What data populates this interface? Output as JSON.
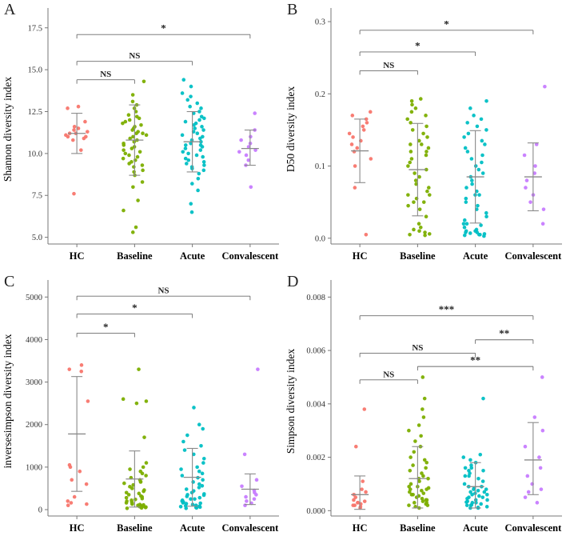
{
  "figure": {
    "background": "#ffffff",
    "groups": [
      "HC",
      "Baseline",
      "Acute",
      "Convalescent"
    ],
    "group_colors": [
      "#F8766D",
      "#7CAE00",
      "#00BFC4",
      "#C77CFF"
    ],
    "errorbar_color": "#8a8a8a",
    "axis_color": "#777777",
    "bracket_color": "#6b6b6b"
  },
  "chart_data": [
    {
      "type": "scatter",
      "panel_label": "A",
      "ylabel": "Shannon diversity index",
      "xlabel": "",
      "categories": [
        "HC",
        "Baseline",
        "Acute",
        "Convalescent"
      ],
      "ylim": [
        4.6,
        18.3
      ],
      "yticks": [
        5.0,
        7.5,
        10.0,
        12.5,
        15.0,
        17.5
      ],
      "ytick_labels": [
        "5.0",
        "7.5",
        "10.0",
        "12.5",
        "15.0",
        "17.5"
      ],
      "series": [
        {
          "name": "HC",
          "color": "#F8766D",
          "values": [
            7.6,
            10.2,
            10.8,
            10.9,
            11.0,
            11.0,
            11.1,
            11.2,
            11.2,
            11.3,
            11.4,
            11.5,
            11.6,
            11.9,
            12.7,
            12.8
          ],
          "errorbar": {
            "center": 11.2,
            "lo": 10.0,
            "hi": 12.4
          }
        },
        {
          "name": "Baseline",
          "color": "#7CAE00",
          "values": [
            5.3,
            5.6,
            6.6,
            7.2,
            8.0,
            8.3,
            8.7,
            8.9,
            9.0,
            9.2,
            9.3,
            9.4,
            9.5,
            9.6,
            9.7,
            9.8,
            9.9,
            10.0,
            10.1,
            10.2,
            10.3,
            10.4,
            10.5,
            10.6,
            10.7,
            10.8,
            10.9,
            11.0,
            11.1,
            11.2,
            11.2,
            11.3,
            11.4,
            11.5,
            11.6,
            11.7,
            11.8,
            11.9,
            12.0,
            12.1,
            12.2,
            12.3,
            12.5,
            12.7,
            12.9,
            13.1,
            13.5,
            14.3
          ],
          "errorbar": {
            "center": 10.8,
            "lo": 8.7,
            "hi": 12.9
          }
        },
        {
          "name": "Acute",
          "color": "#00BFC4",
          "values": [
            6.5,
            7.0,
            7.8,
            8.2,
            8.5,
            8.8,
            9.0,
            9.1,
            9.2,
            9.3,
            9.4,
            9.5,
            9.6,
            9.7,
            9.8,
            9.9,
            10.0,
            10.1,
            10.2,
            10.3,
            10.4,
            10.5,
            10.5,
            10.6,
            10.7,
            10.8,
            10.9,
            11.0,
            11.1,
            11.2,
            11.3,
            11.4,
            11.5,
            11.6,
            11.7,
            11.8,
            11.9,
            12.0,
            12.1,
            12.2,
            12.4,
            12.5,
            12.7,
            12.8,
            13.0,
            13.2,
            13.4,
            13.6,
            14.0,
            14.4
          ],
          "errorbar": {
            "center": 10.7,
            "lo": 8.9,
            "hi": 12.5
          }
        },
        {
          "name": "Convalescent",
          "color": "#C77CFF",
          "values": [
            8.0,
            9.3,
            9.6,
            9.9,
            10.1,
            10.2,
            10.4,
            10.6,
            10.8,
            11.0,
            11.4,
            12.4
          ],
          "errorbar": {
            "center": 10.3,
            "lo": 9.3,
            "hi": 11.4
          }
        }
      ],
      "significance": [
        {
          "from": 0,
          "to": 1,
          "label": "NS",
          "y": 14.4
        },
        {
          "from": 0,
          "to": 2,
          "label": "NS",
          "y": 15.5
        },
        {
          "from": 0,
          "to": 3,
          "label": "*",
          "y": 17.1
        }
      ]
    },
    {
      "type": "scatter",
      "panel_label": "B",
      "ylabel": "D50 diversity index",
      "xlabel": "",
      "categories": [
        "HC",
        "Baseline",
        "Acute",
        "Convalescent"
      ],
      "ylim": [
        -0.008,
        0.31
      ],
      "yticks": [
        0.0,
        0.1,
        0.2,
        0.3
      ],
      "ytick_labels": [
        "0.0",
        "0.1",
        "0.2",
        "0.3"
      ],
      "series": [
        {
          "name": "HC",
          "color": "#F8766D",
          "values": [
            0.005,
            0.07,
            0.1,
            0.11,
            0.12,
            0.125,
            0.13,
            0.135,
            0.14,
            0.145,
            0.15,
            0.155,
            0.16,
            0.165,
            0.17,
            0.175
          ],
          "errorbar": {
            "center": 0.121,
            "lo": 0.077,
            "hi": 0.165
          }
        },
        {
          "name": "Baseline",
          "color": "#7CAE00",
          "values": [
            0.004,
            0.005,
            0.006,
            0.008,
            0.01,
            0.012,
            0.015,
            0.02,
            0.03,
            0.04,
            0.045,
            0.05,
            0.05,
            0.055,
            0.06,
            0.06,
            0.065,
            0.07,
            0.075,
            0.08,
            0.085,
            0.09,
            0.095,
            0.1,
            0.105,
            0.11,
            0.115,
            0.12,
            0.12,
            0.125,
            0.13,
            0.13,
            0.135,
            0.14,
            0.145,
            0.15,
            0.155,
            0.16,
            0.165,
            0.17,
            0.175,
            0.18,
            0.185,
            0.19,
            0.193
          ],
          "errorbar": {
            "center": 0.095,
            "lo": 0.031,
            "hi": 0.159
          }
        },
        {
          "name": "Acute",
          "color": "#00BFC4",
          "values": [
            0.003,
            0.004,
            0.005,
            0.005,
            0.006,
            0.007,
            0.008,
            0.008,
            0.01,
            0.01,
            0.012,
            0.015,
            0.018,
            0.02,
            0.02,
            0.025,
            0.03,
            0.035,
            0.04,
            0.045,
            0.05,
            0.055,
            0.06,
            0.06,
            0.065,
            0.07,
            0.075,
            0.08,
            0.085,
            0.09,
            0.095,
            0.1,
            0.105,
            0.11,
            0.115,
            0.12,
            0.125,
            0.13,
            0.135,
            0.14,
            0.145,
            0.15,
            0.155,
            0.16,
            0.165,
            0.17,
            0.18,
            0.19
          ],
          "errorbar": {
            "center": 0.085,
            "lo": 0.021,
            "hi": 0.149
          }
        },
        {
          "name": "Convalescent",
          "color": "#C77CFF",
          "values": [
            0.02,
            0.04,
            0.05,
            0.06,
            0.07,
            0.08,
            0.09,
            0.1,
            0.115,
            0.13,
            0.21
          ],
          "errorbar": {
            "center": 0.085,
            "lo": 0.038,
            "hi": 0.132
          }
        }
      ],
      "significance": [
        {
          "from": 0,
          "to": 1,
          "label": "NS",
          "y": 0.232
        },
        {
          "from": 0,
          "to": 2,
          "label": "*",
          "y": 0.258
        },
        {
          "from": 0,
          "to": 3,
          "label": "*",
          "y": 0.288
        }
      ]
    },
    {
      "type": "scatter",
      "panel_label": "C",
      "ylabel": "inversesimpson diversity index",
      "xlabel": "",
      "categories": [
        "HC",
        "Baseline",
        "Acute",
        "Convalescent"
      ],
      "ylim": [
        -150,
        5250
      ],
      "yticks": [
        0,
        1000,
        2000,
        3000,
        4000,
        5000
      ],
      "ytick_labels": [
        "0",
        "1000",
        "2000",
        "3000",
        "4000",
        "5000"
      ],
      "series": [
        {
          "name": "HC",
          "color": "#F8766D",
          "values": [
            100,
            130,
            160,
            200,
            300,
            600,
            700,
            900,
            1000,
            1050,
            2550,
            3250,
            3300,
            3400
          ],
          "errorbar": {
            "center": 1780,
            "lo": 430,
            "hi": 3130
          }
        },
        {
          "name": "Baseline",
          "color": "#7CAE00",
          "values": [
            30,
            40,
            50,
            60,
            70,
            80,
            90,
            100,
            110,
            120,
            130,
            150,
            160,
            180,
            200,
            220,
            240,
            260,
            280,
            300,
            320,
            350,
            380,
            400,
            430,
            460,
            500,
            540,
            580,
            620,
            650,
            660,
            700,
            750,
            800,
            850,
            900,
            950,
            1000,
            1100,
            1700,
            2500,
            2550,
            2600,
            3300
          ],
          "errorbar": {
            "center": 720,
            "lo": 60,
            "hi": 1380
          }
        },
        {
          "name": "Acute",
          "color": "#00BFC4",
          "values": [
            30,
            40,
            50,
            60,
            70,
            80,
            90,
            100,
            120,
            140,
            150,
            160,
            180,
            200,
            220,
            250,
            250,
            280,
            310,
            340,
            350,
            370,
            400,
            440,
            480,
            520,
            560,
            600,
            650,
            700,
            750,
            800,
            850,
            900,
            950,
            1000,
            1100,
            1200,
            1300,
            1400,
            1500,
            1600,
            1750,
            1900,
            2000,
            2400
          ],
          "errorbar": {
            "center": 760,
            "lo": 80,
            "hi": 1440
          }
        },
        {
          "name": "Convalescent",
          "color": "#C77CFF",
          "values": [
            100,
            150,
            200,
            250,
            300,
            350,
            400,
            450,
            550,
            700,
            1300,
            3300
          ],
          "errorbar": {
            "center": 480,
            "lo": 120,
            "hi": 840
          }
        }
      ],
      "significance": [
        {
          "from": 0,
          "to": 1,
          "label": "*",
          "y": 4150
        },
        {
          "from": 0,
          "to": 2,
          "label": "*",
          "y": 4600
        },
        {
          "from": 0,
          "to": 3,
          "label": "NS",
          "y": 5020
        }
      ]
    },
    {
      "type": "scatter",
      "panel_label": "D",
      "ylabel": "Simpson diversity index",
      "xlabel": "",
      "categories": [
        "HC",
        "Baseline",
        "Acute",
        "Convalescent"
      ],
      "ylim": [
        -0.0002,
        0.0084
      ],
      "yticks": [
        0.0,
        0.002,
        0.004,
        0.006,
        0.008
      ],
      "ytick_labels": [
        "0.000",
        "0.002",
        "0.004",
        "0.006",
        "0.008"
      ],
      "series": [
        {
          "name": "HC",
          "color": "#F8766D",
          "values": [
            0.0001,
            0.00015,
            0.0002,
            0.0002,
            0.00025,
            0.0003,
            0.0003,
            0.00035,
            0.0004,
            0.0005,
            0.0006,
            0.0007,
            0.0008,
            0.0011,
            0.0024,
            0.0038
          ],
          "errorbar": {
            "center": 0.0006,
            "lo": 5e-05,
            "hi": 0.0013
          }
        },
        {
          "name": "Baseline",
          "color": "#7CAE00",
          "values": [
            0.0001,
            0.00015,
            0.0002,
            0.0002,
            0.00025,
            0.0003,
            0.0003,
            0.00035,
            0.0004,
            0.0004,
            0.00045,
            0.0005,
            0.00055,
            0.0006,
            0.0006,
            0.00065,
            0.0007,
            0.00075,
            0.0008,
            0.0008,
            0.00085,
            0.0009,
            0.0009,
            0.001,
            0.0011,
            0.0012,
            0.0012,
            0.0013,
            0.0014,
            0.0015,
            0.0016,
            0.0017,
            0.0018,
            0.0019,
            0.002,
            0.0022,
            0.0024,
            0.0026,
            0.0028,
            0.003,
            0.0032,
            0.0035,
            0.0038,
            0.0042,
            0.005
          ],
          "errorbar": {
            "center": 0.0012,
            "lo": 0.0001,
            "hi": 0.0024
          }
        },
        {
          "name": "Acute",
          "color": "#00BFC4",
          "values": [
            0.0001,
            0.0001,
            0.00012,
            0.00015,
            0.0002,
            0.0002,
            0.00022,
            0.00025,
            0.0003,
            0.0003,
            0.00032,
            0.00035,
            0.0004,
            0.0004,
            0.00045,
            0.0005,
            0.0005,
            0.00055,
            0.0006,
            0.0006,
            0.00065,
            0.0007,
            0.0007,
            0.00075,
            0.0008,
            0.0008,
            0.00085,
            0.0009,
            0.0009,
            0.001,
            0.0011,
            0.0012,
            0.0013,
            0.0013,
            0.0014,
            0.0015,
            0.0015,
            0.0016,
            0.0016,
            0.0017,
            0.0018,
            0.0019,
            0.002,
            0.0021,
            0.0042
          ],
          "errorbar": {
            "center": 0.0009,
            "lo": 0.0001,
            "hi": 0.0018
          }
        },
        {
          "name": "Convalescent",
          "color": "#C77CFF",
          "values": [
            0.0003,
            0.0005,
            0.0007,
            0.0008,
            0.001,
            0.0013,
            0.0016,
            0.002,
            0.0024,
            0.003,
            0.0035,
            0.005
          ],
          "errorbar": {
            "center": 0.0019,
            "lo": 0.0006,
            "hi": 0.0033
          }
        }
      ],
      "significance": [
        {
          "from": 0,
          "to": 1,
          "label": "NS",
          "y": 0.0049
        },
        {
          "from": 1,
          "to": 3,
          "label": "**",
          "y": 0.0054
        },
        {
          "from": 0,
          "to": 2,
          "label": "NS",
          "y": 0.0059
        },
        {
          "from": 2,
          "to": 3,
          "label": "**",
          "y": 0.0064
        },
        {
          "from": 0,
          "to": 3,
          "label": "***",
          "y": 0.0073
        }
      ]
    }
  ]
}
